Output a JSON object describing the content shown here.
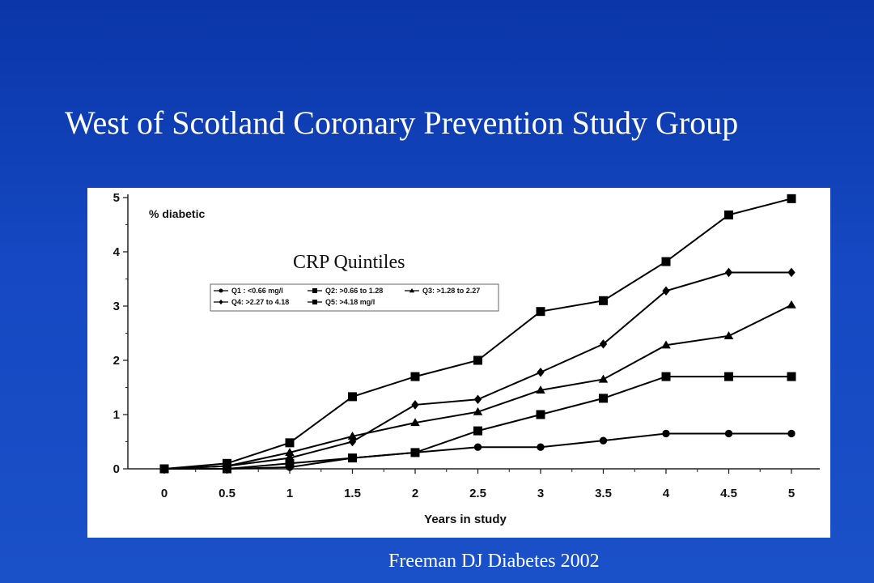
{
  "slide": {
    "title": "West of Scotland Coronary Prevention Study Group",
    "citation": "Freeman DJ  Diabetes 2002"
  },
  "colors": {
    "background": "#1245bd",
    "text": "#ffffff",
    "panel": "#ffffff",
    "series": "#000000"
  },
  "chart_data": {
    "type": "line",
    "title": "CRP Quintiles",
    "ylabel": "% diabetic",
    "xlabel": "Years in study",
    "x": [
      0,
      0.5,
      1,
      1.5,
      2,
      2.5,
      3,
      3.5,
      4,
      4.5,
      5
    ],
    "x_tick_labels": [
      "0",
      "0.5",
      "1",
      "1.5",
      "2",
      "2.5",
      "3",
      "3.5",
      "4",
      "4.5",
      "5"
    ],
    "y_tick_labels": [
      "0",
      "1",
      "2",
      "3",
      "4",
      "5"
    ],
    "xlim": [
      0,
      5
    ],
    "ylim": [
      0,
      5
    ],
    "grid": false,
    "legend_position": "top-left",
    "series": [
      {
        "name": "Q1 : <0.66 mg/l",
        "marker": "circle",
        "values": [
          0,
          0,
          0.03,
          0.2,
          0.3,
          0.4,
          0.4,
          0.52,
          0.65,
          0.65,
          0.65
        ]
      },
      {
        "name": "Q2: >0.66 to 1.28",
        "marker": "square",
        "values": [
          0,
          0,
          0.1,
          0.2,
          0.3,
          0.7,
          1.0,
          1.3,
          1.7,
          1.7,
          1.7
        ]
      },
      {
        "name": "Q3: >1.28 to 2.27",
        "marker": "triangle",
        "values": [
          0,
          0.05,
          0.3,
          0.6,
          0.85,
          1.05,
          1.45,
          1.65,
          2.28,
          2.45,
          3.02
        ]
      },
      {
        "name": "Q4: >2.27 to 4.18",
        "marker": "diamond",
        "values": [
          0,
          0.05,
          0.2,
          0.5,
          1.18,
          1.28,
          1.78,
          2.3,
          3.28,
          3.62,
          3.62
        ]
      },
      {
        "name": "Q5: >4.18 mg/l",
        "marker": "square",
        "values": [
          0,
          0.1,
          0.48,
          1.33,
          1.7,
          2.0,
          2.9,
          3.1,
          3.82,
          4.68,
          4.98
        ]
      }
    ]
  }
}
